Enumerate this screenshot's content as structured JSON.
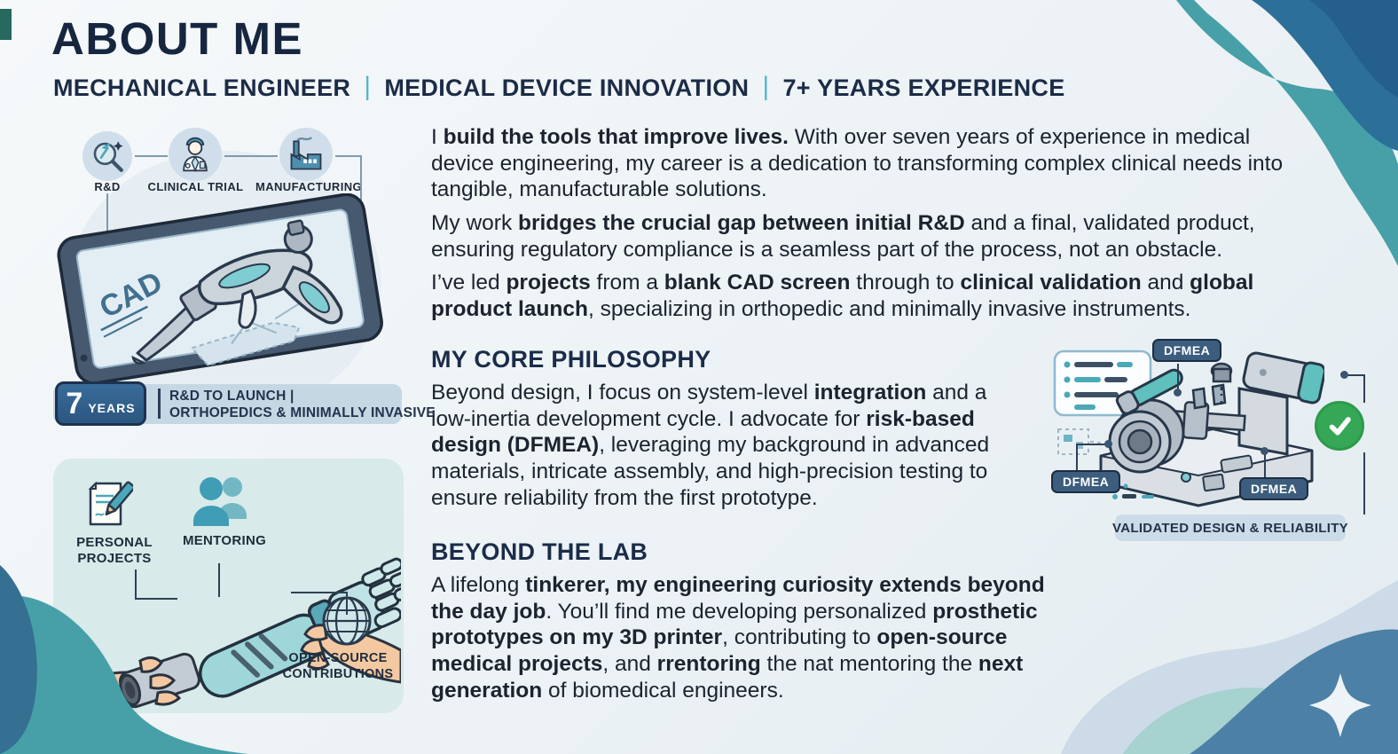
{
  "page": {
    "title": "ABOUT ME",
    "subtitle_parts": [
      "MECHANICAL ENGINEER",
      "MEDICAL DEVICE INNOVATION",
      "7+ YEARS EXPERIENCE"
    ],
    "separator": "|"
  },
  "colors": {
    "navy": "#16263f",
    "teal_accent": "#4ba5ad",
    "steel_blue": "#2f618f",
    "check_green": "#36a757",
    "panel_teal": "#d8eae9",
    "strip_blue": "#c6d7e4"
  },
  "timeline": {
    "steps": [
      {
        "label": "R&D",
        "icon": "magnifier-icon"
      },
      {
        "label": "CLINICAL TRIAL",
        "icon": "doctor-icon"
      },
      {
        "label": "MANUFACTURING",
        "icon": "factory-icon"
      }
    ],
    "tablet_label": "CAD",
    "badge": {
      "number": "7",
      "unit": "YEARS",
      "line1": "R&D TO LAUNCH |",
      "line2": "ORTHOPEDICS & MINIMALLY INVASIVE"
    }
  },
  "intro": {
    "paragraphs": [
      [
        [
          "I ",
          0
        ],
        [
          "build the tools that improve lives.",
          1
        ],
        [
          " With over seven years of experience in medical device engineering, my career is a dedication to transforming complex clinical needs into tangible, manufacturable solutions.",
          0
        ]
      ],
      [
        [
          "My work ",
          0
        ],
        [
          "bridges the crucial gap between initial R&D",
          1
        ],
        [
          " and a final, validated product, ensuring regulatory compliance is a seamless part of the process, not an obstacle.",
          0
        ]
      ],
      [
        [
          "I’ve led ",
          0
        ],
        [
          "projects",
          1
        ],
        [
          " from a ",
          0
        ],
        [
          "blank CAD screen",
          1
        ],
        [
          " through to ",
          0
        ],
        [
          "clinical validation",
          1
        ],
        [
          " and ",
          0
        ],
        [
          "global product launch",
          1
        ],
        [
          ", specializing in orthopedic and minimally invasive instruments.",
          0
        ]
      ]
    ]
  },
  "philosophy": {
    "heading": "MY CORE PHILOSOPHY",
    "body": [
      [
        "Beyond design, I focus on system-level ",
        0
      ],
      [
        "integration",
        1
      ],
      [
        " and a low-inertia development cycle. I advocate for ",
        0
      ],
      [
        "risk-based design (DFMEA)",
        1
      ],
      [
        ", leveraging my background in advanced materials, intricate assembly, and high-precision testing to ensure reliability from the first prototype.",
        0
      ]
    ]
  },
  "beyond": {
    "heading": "BEYOND THE LAB",
    "body": [
      [
        "A lifelong ",
        0
      ],
      [
        "tinkerer, my engineering curiosity extends beyond the day job",
        1
      ],
      [
        ". You’ll find me developing personalized ",
        0
      ],
      [
        "prosthetic prototypes on my 3D printer",
        1
      ],
      [
        ", contributing to ",
        0
      ],
      [
        "open-source medical projects",
        1
      ],
      [
        ", and ",
        0
      ],
      [
        "rrentoring",
        1
      ],
      [
        " the nat mentoring the ",
        0
      ],
      [
        "next generation",
        1
      ],
      [
        " of biomedical engineers.",
        0
      ]
    ]
  },
  "validation": {
    "labels": [
      "DFMEA",
      "DFMEA",
      "DFMEA"
    ],
    "caption": "VALIDATED DESIGN & RELIABILITY",
    "check_icon": "check-icon"
  },
  "community": {
    "items": [
      {
        "label": "PERSONAL PROJECTS",
        "icon": "document-pencil-icon"
      },
      {
        "label": "MENTORING",
        "icon": "people-icon"
      },
      {
        "label": "OPEN-SOURCE CONTRIBUTIONS",
        "icon": "globe-icon"
      }
    ]
  }
}
